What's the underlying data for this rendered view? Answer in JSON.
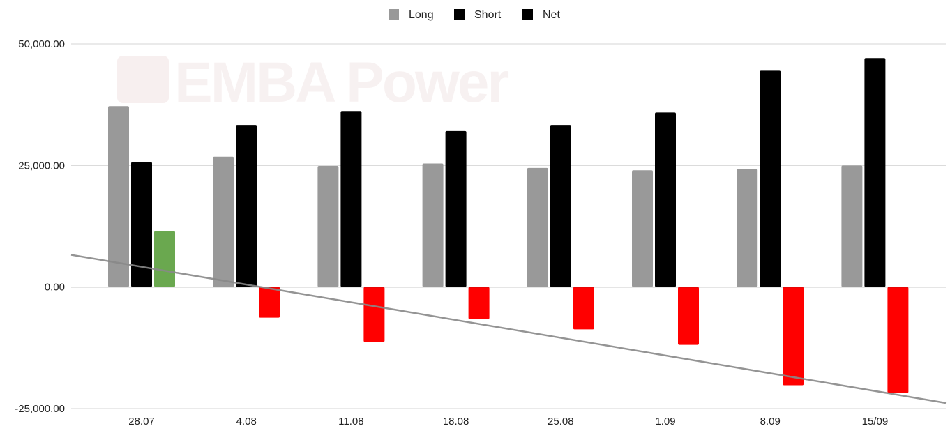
{
  "chart_data": {
    "type": "bar",
    "title": "",
    "xlabel": "",
    "ylabel": "",
    "categories": [
      "28.07",
      "4.08",
      "11.08",
      "18.08",
      "25.08",
      "1.09",
      "8.09",
      "15/09"
    ],
    "series": [
      {
        "name": "Long",
        "color": "#999999",
        "values": [
          37200,
          26800,
          24900,
          25400,
          24500,
          24000,
          24300,
          25000
        ]
      },
      {
        "name": "Short",
        "color": "#000000",
        "values": [
          25700,
          33200,
          36200,
          32100,
          33200,
          35900,
          44500,
          47100
        ]
      },
      {
        "name": "Net",
        "color": "#000000",
        "values": [
          11500,
          -6300,
          -11300,
          -6600,
          -8700,
          -11900,
          -20200,
          -21800
        ],
        "positive_color": "#6aa84f",
        "negative_color": "#ff0000"
      }
    ],
    "trendline": {
      "series": "Net",
      "color": "#888888"
    },
    "ylim": [
      -25000,
      50000
    ],
    "yticks": [
      "50,000.00",
      "25,000.00",
      "0.00",
      "-25,000.00"
    ],
    "ytick_values": [
      50000,
      25000,
      0,
      -25000
    ],
    "grid": true,
    "legend_position": "top-center",
    "watermark": "EMBA Power"
  }
}
